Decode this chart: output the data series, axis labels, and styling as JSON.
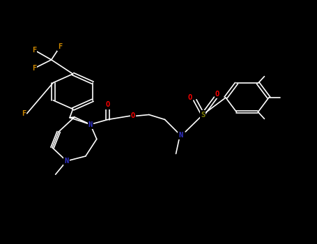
{
  "background": "#000000",
  "bond_color": "#FFFFFF",
  "atom_colors": {
    "N": "#3333CC",
    "O": "#FF0000",
    "F": "#CC8800",
    "S": "#808000",
    "C": "#FFFFFF"
  },
  "bond_width": 1.2,
  "font_size": 7.5,
  "fig_width": 4.55,
  "fig_height": 3.5,
  "dpi": 100
}
